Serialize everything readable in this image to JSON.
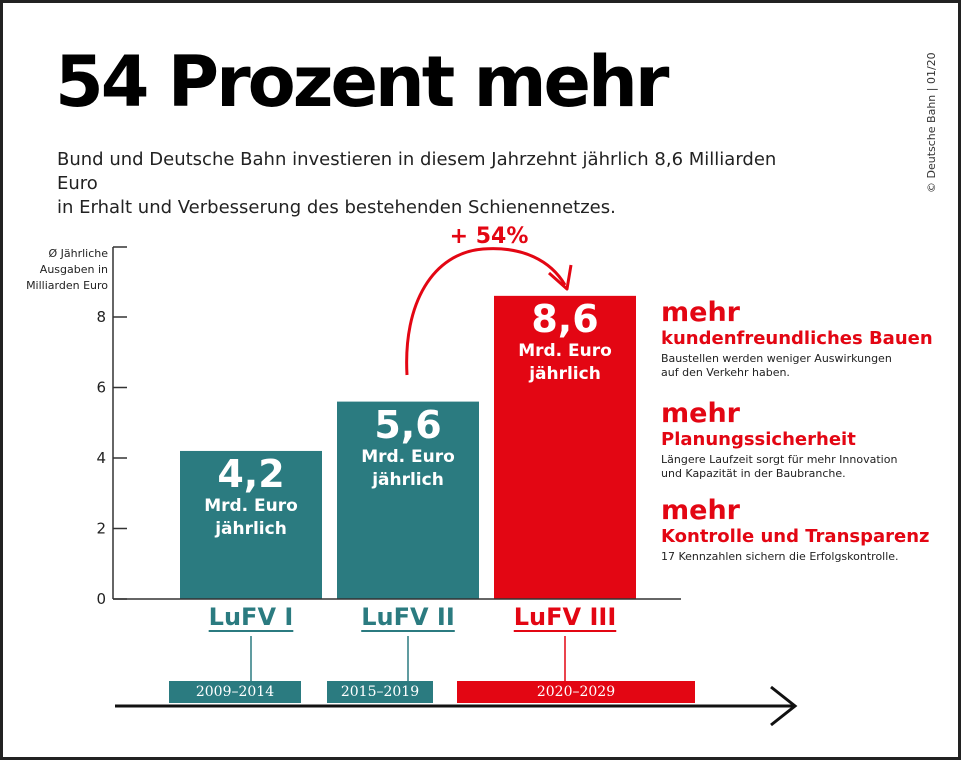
{
  "title": "54 Prozent mehr",
  "subtitle_line1": "Bund und Deutsche Bahn investieren in diesem Jahrzehnt jährlich 8,6 Milliarden Euro",
  "subtitle_line2": "in Erhalt und Verbesserung des bestehenden Schienennetzes.",
  "copyright": "© Deutsche Bahn | 01/20",
  "colors": {
    "teal": "#2b7b80",
    "red": "#e30613",
    "axis": "#333333"
  },
  "chart_data": {
    "type": "bar",
    "ylabel": [
      "Ø Jährliche",
      "Ausgaben in",
      "Milliarden Euro"
    ],
    "ylim": [
      0,
      8
    ],
    "yticks": [
      "0",
      "2",
      "4",
      "6",
      "8"
    ],
    "categories": [
      "LuFV I",
      "LuFV II",
      "LuFV III"
    ],
    "values": [
      4.2,
      5.6,
      8.6
    ],
    "value_labels": [
      "4,2",
      "5,6",
      "8,6"
    ],
    "unit_line1": "Mrd. Euro",
    "unit_line2": "jährlich",
    "periods": [
      "2009–2014",
      "2015–2019",
      "2020–2029"
    ],
    "annotation": "+ 54%"
  },
  "benefits": [
    {
      "more": "mehr",
      "head": "kundenfreundliches Bauen",
      "text_line1": "Baustellen werden weniger Auswirkungen",
      "text_line2": "auf den Verkehr haben."
    },
    {
      "more": "mehr",
      "head": "Planungssicherheit",
      "text_line1": "Längere Laufzeit sorgt für mehr Innovation",
      "text_line2": "und Kapazität in der Baubranche."
    },
    {
      "more": "mehr",
      "head": "Kontrolle und Transparenz",
      "text_line1": "17 Kennzahlen sichern die Erfolgskontrolle.",
      "text_line2": ""
    }
  ]
}
